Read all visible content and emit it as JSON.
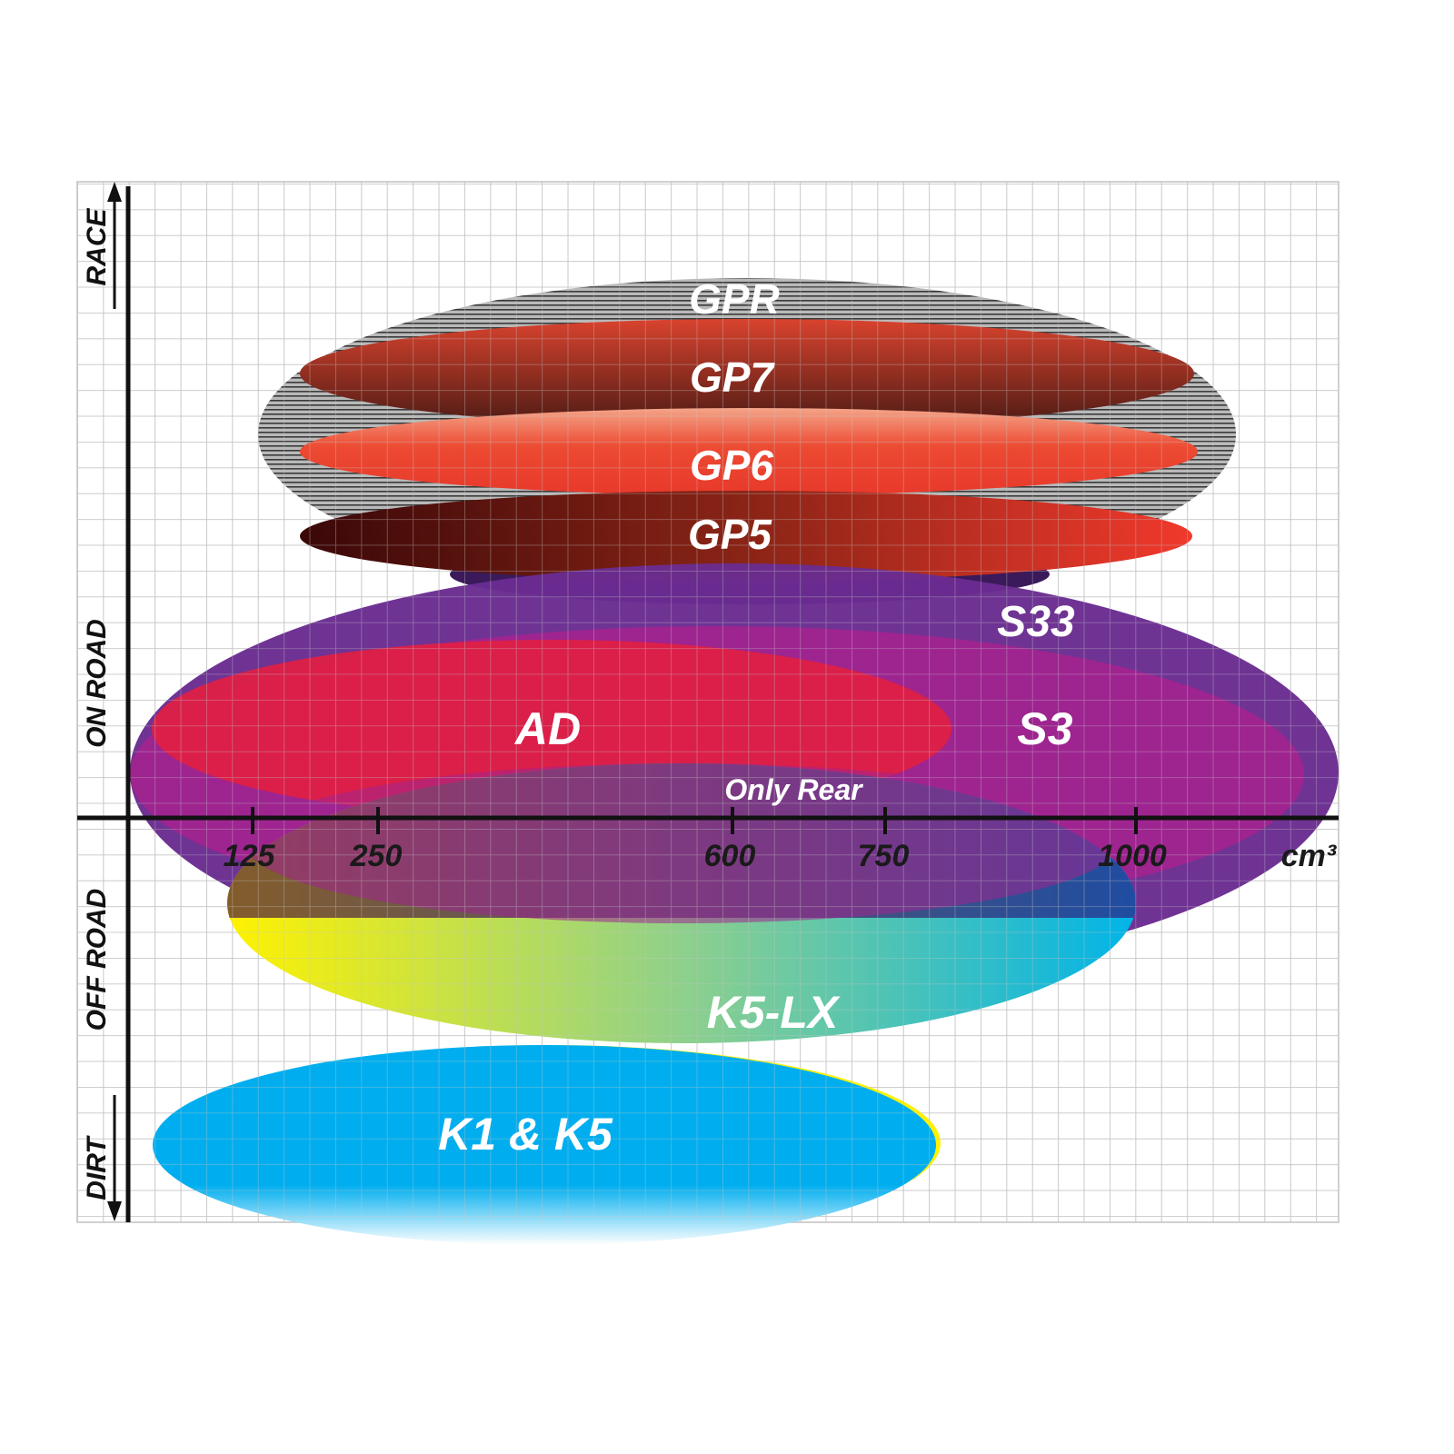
{
  "chart_data": {
    "type": "diagram-ellipse-positioning",
    "x_axis": {
      "unit": "cm³",
      "ticks": [
        125,
        250,
        600,
        750,
        1000
      ]
    },
    "y_axis": {
      "labels_top_to_bottom": [
        "RACE",
        "ON ROAD",
        "OFF ROAD",
        "DIRT"
      ]
    },
    "grid": true,
    "products": [
      {
        "name": "GPR",
        "cc_range": [
          75,
          1050
        ],
        "color": "#9a9a9a",
        "pattern": "striped"
      },
      {
        "name": "GP7",
        "cc_range": [
          115,
          1010
        ],
        "color": "#7a2a1c"
      },
      {
        "name": "GP6",
        "cc_range": [
          115,
          1012
        ],
        "color": "#e8432f"
      },
      {
        "name": "GP5",
        "cc_range": [
          115,
          1005
        ],
        "color": "#b0231c"
      },
      {
        "name": "S33",
        "cc_range": [
          0,
          1200
        ],
        "color": "#6a2c91"
      },
      {
        "name": "S3",
        "cc_range": [
          0,
          1170
        ],
        "color": "#a0248f"
      },
      {
        "name": "AD",
        "cc_range": [
          25,
          820
        ],
        "color": "#e01f44"
      },
      {
        "name": "K5-LX",
        "note": "Only Rear",
        "cc_range": [
          100,
          1000
        ],
        "color_from": "#fff200",
        "color_to": "#00b4e8"
      },
      {
        "name": "K1 & K5",
        "cc_range": [
          25,
          805
        ],
        "color": "#00aeef"
      }
    ]
  },
  "labels": {
    "gpr": "GPR",
    "gp7": "GP7",
    "gp6": "GP6",
    "gp5": "GP5",
    "s33": "S33",
    "s3": "S3",
    "ad": "AD",
    "only_rear": "Only Rear",
    "k5lx": "K5-LX",
    "k1k5": "K1 & K5",
    "unit": "cm³",
    "race": "RACE",
    "on_road": "ON ROAD",
    "off_road": "OFF ROAD",
    "dirt": "DIRT",
    "t125": "125",
    "t250": "250",
    "t600": "600",
    "t750": "750",
    "t1000": "1000"
  }
}
